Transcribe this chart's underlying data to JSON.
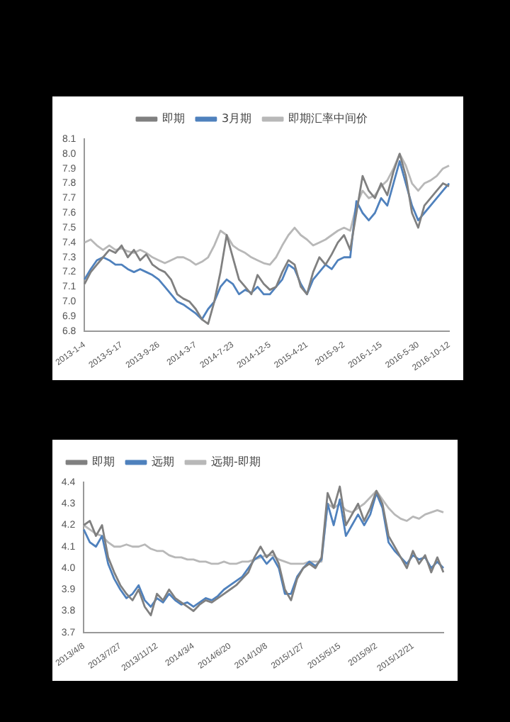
{
  "chart_data": [
    {
      "type": "line",
      "legend": "top",
      "grid": false,
      "marker": "none",
      "line_style": "solid",
      "categories": [
        "2013-1-4",
        null,
        null,
        null,
        null,
        null,
        "2013-5-17",
        null,
        null,
        null,
        null,
        null,
        "2013-9-26",
        null,
        null,
        null,
        null,
        null,
        "2014-3-7",
        null,
        null,
        null,
        null,
        null,
        "2014-7-23",
        null,
        null,
        null,
        null,
        null,
        "2014-12-5",
        null,
        null,
        null,
        null,
        null,
        "2015-4-21",
        null,
        null,
        null,
        null,
        null,
        "2015-9-2",
        null,
        null,
        null,
        null,
        null,
        "2016-1-15",
        null,
        null,
        null,
        null,
        null,
        "2016-5-30",
        null,
        null,
        null,
        null,
        "2016-10-12"
      ],
      "ylim": [
        6.8,
        8.1
      ],
      "yticks": [
        6.8,
        6.9,
        {
          "value": 7,
          "label": "7.0"
        },
        7.1,
        7.2,
        7.3,
        7.4,
        7.5,
        7.6,
        7.7,
        7.8,
        7.9,
        {
          "value": 8,
          "label": "8.0"
        },
        8.1
      ],
      "series": [
        {
          "name": "即期",
          "color": "#808080",
          "values": [
            7.12,
            7.2,
            7.25,
            7.3,
            7.35,
            7.33,
            7.38,
            7.3,
            7.35,
            7.28,
            7.32,
            7.25,
            7.22,
            7.2,
            7.15,
            7.05,
            7.02,
            7.0,
            6.95,
            6.88,
            6.85,
            7.0,
            7.2,
            7.45,
            7.3,
            7.15,
            7.1,
            7.05,
            7.18,
            7.12,
            7.08,
            7.1,
            7.2,
            7.28,
            7.25,
            7.1,
            7.05,
            7.2,
            7.3,
            7.25,
            7.32,
            7.4,
            7.45,
            7.35,
            7.6,
            7.85,
            7.75,
            7.7,
            7.8,
            7.72,
            7.88,
            8.0,
            7.85,
            7.6,
            7.5,
            7.65,
            7.7,
            7.75,
            7.8,
            7.78
          ]
        },
        {
          "name": "3月期",
          "color": "#4f81bd",
          "values": [
            7.15,
            7.22,
            7.28,
            7.3,
            7.28,
            7.25,
            7.25,
            7.22,
            7.2,
            7.22,
            7.2,
            7.18,
            7.15,
            7.1,
            7.05,
            7.0,
            6.98,
            6.95,
            6.92,
            6.88,
            6.95,
            7.0,
            7.1,
            7.15,
            7.12,
            7.05,
            7.08,
            7.06,
            7.1,
            7.05,
            7.05,
            7.1,
            7.15,
            7.25,
            7.22,
            7.12,
            7.05,
            7.15,
            7.2,
            7.25,
            7.22,
            7.28,
            7.3,
            7.3,
            7.68,
            7.6,
            7.55,
            7.6,
            7.7,
            7.65,
            7.8,
            7.95,
            7.8,
            7.65,
            7.55,
            7.6,
            7.65,
            7.7,
            7.75,
            7.8
          ]
        },
        {
          "name": "即期汇率中间价",
          "color": "#b8b8b8",
          "values": [
            7.4,
            7.42,
            7.38,
            7.35,
            7.38,
            7.35,
            7.36,
            7.34,
            7.33,
            7.35,
            7.33,
            7.3,
            7.28,
            7.26,
            7.28,
            7.3,
            7.3,
            7.28,
            7.25,
            7.27,
            7.3,
            7.38,
            7.48,
            7.45,
            7.38,
            7.35,
            7.33,
            7.3,
            7.28,
            7.26,
            7.25,
            7.3,
            7.38,
            7.45,
            7.5,
            7.45,
            7.42,
            7.38,
            7.4,
            7.42,
            7.45,
            7.48,
            7.5,
            7.48,
            7.65,
            7.75,
            7.7,
            7.72,
            7.78,
            7.82,
            7.9,
            8.0,
            7.92,
            7.8,
            7.75,
            7.8,
            7.82,
            7.85,
            7.9,
            7.92
          ]
        }
      ]
    },
    {
      "type": "line",
      "legend": "top left",
      "grid": false,
      "marker": "none",
      "line_style": "solid",
      "categories": [
        "2013/4/8",
        null,
        null,
        null,
        null,
        null,
        "2013/7/27",
        null,
        null,
        null,
        null,
        null,
        "2013/11/12",
        null,
        null,
        null,
        null,
        null,
        "2014/3/4",
        null,
        null,
        null,
        null,
        null,
        "2014/6/20",
        null,
        null,
        null,
        null,
        null,
        "2014/10/8",
        null,
        null,
        null,
        null,
        null,
        "2015/1/27",
        null,
        null,
        null,
        null,
        null,
        "2015/5/15",
        null,
        null,
        null,
        null,
        null,
        "2015/9/2",
        null,
        null,
        null,
        null,
        null,
        "2015/12/21",
        null,
        null,
        null,
        null,
        null
      ],
      "ylim": [
        3.7,
        4.4
      ],
      "yticks": [
        3.7,
        3.8,
        3.9,
        {
          "value": 4,
          "label": "4.0"
        },
        4.1,
        4.2,
        4.3,
        4.4
      ],
      "series": [
        {
          "name": "即期",
          "color": "#808080",
          "values": [
            4.2,
            4.22,
            4.15,
            4.2,
            4.05,
            3.98,
            3.92,
            3.88,
            3.85,
            3.9,
            3.82,
            3.78,
            3.88,
            3.85,
            3.9,
            3.86,
            3.84,
            3.82,
            3.8,
            3.83,
            3.85,
            3.84,
            3.86,
            3.88,
            3.9,
            3.92,
            3.95,
            3.98,
            4.05,
            4.1,
            4.05,
            4.08,
            4.02,
            3.9,
            3.85,
            3.95,
            4.0,
            4.02,
            4.0,
            4.05,
            4.35,
            4.28,
            4.38,
            4.2,
            4.25,
            4.3,
            4.22,
            4.28,
            4.36,
            4.3,
            4.15,
            4.1,
            4.05,
            4.0,
            4.08,
            4.02,
            4.06,
            3.98,
            4.05,
            3.98
          ]
        },
        {
          "name": "远期",
          "color": "#4f81bd",
          "values": [
            4.18,
            4.12,
            4.1,
            4.15,
            4.02,
            3.95,
            3.9,
            3.86,
            3.88,
            3.92,
            3.85,
            3.82,
            3.86,
            3.84,
            3.88,
            3.85,
            3.83,
            3.84,
            3.82,
            3.84,
            3.86,
            3.85,
            3.87,
            3.9,
            3.92,
            3.94,
            3.96,
            4.0,
            4.04,
            4.06,
            4.02,
            4.05,
            4.0,
            3.88,
            3.88,
            3.96,
            4.0,
            4.03,
            4.01,
            4.04,
            4.3,
            4.2,
            4.32,
            4.15,
            4.2,
            4.25,
            4.2,
            4.25,
            4.35,
            4.28,
            4.12,
            4.08,
            4.05,
            4.02,
            4.06,
            4.04,
            4.05,
            4.0,
            4.03,
            4.0
          ]
        },
        {
          "name": "远期-即期",
          "color": "#b8b8b8",
          "values": [
            4.2,
            4.18,
            4.16,
            4.15,
            4.12,
            4.1,
            4.1,
            4.11,
            4.1,
            4.1,
            4.11,
            4.09,
            4.08,
            4.08,
            4.06,
            4.05,
            4.05,
            4.04,
            4.04,
            4.03,
            4.03,
            4.02,
            4.02,
            4.03,
            4.02,
            4.02,
            4.03,
            4.03,
            4.04,
            4.05,
            4.06,
            4.06,
            4.04,
            4.03,
            4.02,
            4.02,
            4.02,
            4.03,
            4.03,
            4.03,
            4.3,
            4.28,
            4.3,
            4.27,
            4.26,
            4.28,
            4.3,
            4.33,
            4.36,
            4.32,
            4.28,
            4.25,
            4.23,
            4.22,
            4.24,
            4.23,
            4.25,
            4.26,
            4.27,
            4.26
          ]
        }
      ]
    }
  ]
}
